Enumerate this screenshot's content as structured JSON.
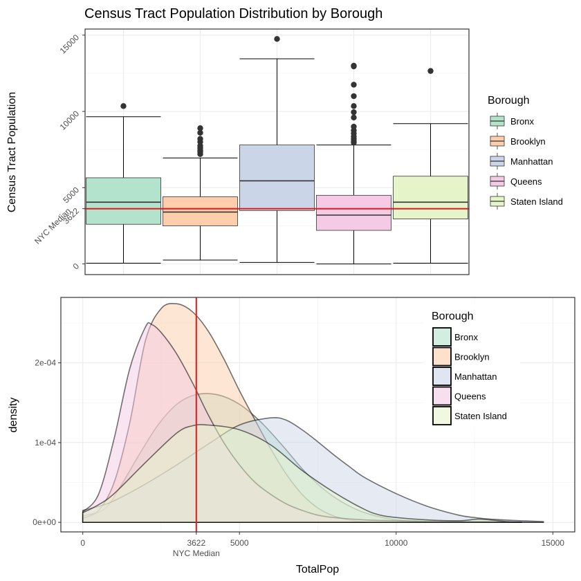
{
  "chart_data": [
    {
      "type": "box",
      "title": "Census Tract Population Distribution by Borough",
      "xlabel": "",
      "ylabel": "Census Tract Population",
      "ylim": [
        -700,
        15400
      ],
      "yticks": [
        0,
        5000,
        10000,
        15000
      ],
      "reference_line": {
        "value": 3622,
        "label": "NYC Median",
        "value_label": "3622",
        "color": "#e41a1c"
      },
      "grid": true,
      "legend": {
        "title": "Borough",
        "position": "right"
      },
      "series": [
        {
          "name": "Bronx",
          "color": "#b3e2cd",
          "min": 50,
          "q1": 2600,
          "median": 4050,
          "q3": 5650,
          "max": 9650,
          "outliers": [
            10350
          ]
        },
        {
          "name": "Brooklyn",
          "color": "#fdcdac",
          "min": 250,
          "q1": 2500,
          "median": 3400,
          "q3": 4400,
          "max": 6950,
          "outliers": [
            7200,
            7350,
            7450,
            7600,
            7750,
            8000,
            8200,
            8600,
            8900
          ]
        },
        {
          "name": "Manhattan",
          "color": "#cbd5e8",
          "min": 100,
          "q1": 3500,
          "median": 5450,
          "q3": 7800,
          "max": 13450,
          "outliers": [
            14750
          ]
        },
        {
          "name": "Queens",
          "color": "#f4cae4",
          "min": 0,
          "q1": 2200,
          "median": 3200,
          "q3": 4500,
          "max": 7800,
          "outliers": [
            7950,
            8050,
            8200,
            8350,
            8550,
            8750,
            9000,
            9600,
            9950,
            10350,
            11000,
            11750,
            12950,
            13000
          ]
        },
        {
          "name": "Staten Island",
          "color": "#e6f5c9",
          "min": 50,
          "q1": 2950,
          "median": 4050,
          "q3": 5750,
          "max": 9200,
          "outliers": [
            12650
          ]
        }
      ]
    },
    {
      "type": "area",
      "title": "",
      "xlabel": "TotalPop",
      "ylabel": "density",
      "xlim": [
        -700,
        15700
      ],
      "ylim": [
        -1.2e-05,
        0.000282
      ],
      "xticks": [
        0,
        3622,
        5000,
        10000,
        15000
      ],
      "xtick_labels": [
        "0",
        "3622",
        "5000",
        "10000",
        "15000"
      ],
      "xtick_sublabel": {
        "value": 3622,
        "text": "NYC Median"
      },
      "yticks": [
        0,
        0.0001,
        0.0002
      ],
      "ytick_labels": [
        "0e+00",
        "1e-04",
        "2e-04"
      ],
      "reference_line": {
        "value": 3622,
        "color": "#e41a1c"
      },
      "grid": true,
      "legend": {
        "title": "Borough",
        "position": "top-right"
      },
      "series": [
        {
          "name": "Bronx",
          "color": "#b3e2cd",
          "x": [
            0,
            700,
            1200,
            1800,
            2400,
            3000,
            3600,
            4300,
            5000,
            5700,
            6400,
            7100,
            7900,
            8800,
            9700,
            10500,
            11500,
            13000,
            14700
          ],
          "y": [
            8e-06,
            1.7e-05,
            4.5e-05,
            8.5e-05,
            0.000122,
            0.000148,
            0.00016,
            0.00016,
            0.000148,
            0.000125,
            9.5e-05,
            6.3e-05,
            3.5e-05,
            1.5e-05,
            5e-06,
            2e-06,
            1e-06,
            1e-06,
            0.0
          ]
        },
        {
          "name": "Brooklyn",
          "color": "#fdcdac",
          "x": [
            0,
            500,
            1000,
            1500,
            2000,
            2500,
            3000,
            3500,
            4000,
            4500,
            5000,
            5500,
            6000,
            6500,
            7000,
            7500,
            8000,
            8500,
            9000
          ],
          "y": [
            5e-06,
            1.5e-05,
            5e-05,
            0.000125,
            0.000228,
            0.000268,
            0.000274,
            0.000264,
            0.00024,
            0.000205,
            0.000165,
            0.000128,
            9.2e-05,
            6e-05,
            3.5e-05,
            1.8e-05,
            8e-06,
            3e-06,
            0.0
          ]
        },
        {
          "name": "Manhattan",
          "color": "#cbd5e8",
          "x": [
            0,
            500,
            1000,
            2000,
            3000,
            4000,
            5000,
            6000,
            6500,
            7000,
            7500,
            8000,
            8500,
            9000,
            10000,
            11000,
            12000,
            12500,
            13000,
            14000,
            14700
          ],
          "y": [
            1.5e-05,
            2e-05,
            2.7e-05,
            4.8e-05,
            7.2e-05,
            9.8e-05,
            0.000122,
            0.000131,
            0.000128,
            0.000116,
            0.000101,
            8.5e-05,
            7e-05,
            5.6e-05,
            3.6e-05,
            2e-05,
            9e-06,
            6e-06,
            4e-06,
            2e-06,
            1e-06
          ]
        },
        {
          "name": "Queens",
          "color": "#f4cae4",
          "x": [
            0,
            500,
            1000,
            1500,
            2000,
            2200,
            2500,
            3000,
            3500,
            4000,
            4500,
            5000,
            5500,
            6000,
            6500,
            7000,
            7500,
            8000,
            9000,
            10000,
            11000,
            12000,
            13000,
            14000
          ],
          "y": [
            1.3e-05,
            3.5e-05,
            0.000105,
            0.000193,
            0.000245,
            0.000248,
            0.000238,
            0.000211,
            0.000175,
            0.000135,
            0.0001,
            7.2e-05,
            5e-05,
            3.5e-05,
            2.3e-05,
            1.5e-05,
            9e-06,
            6e-06,
            3e-06,
            2e-06,
            1e-06,
            1e-06,
            5e-07,
            0.0
          ]
        },
        {
          "name": "Staten Island",
          "color": "#e6f5c9",
          "x": [
            0,
            500,
            1000,
            2000,
            3000,
            3500,
            4000,
            5000,
            6000,
            7000,
            8000,
            9000,
            9500,
            10000,
            11000,
            12000,
            12600,
            13000,
            13500,
            14000
          ],
          "y": [
            1.2e-05,
            2.2e-05,
            3.6e-05,
            7.5e-05,
            0.000112,
            0.000121,
            0.000122,
            0.000116,
            9.7e-05,
            6.5e-05,
            3.8e-05,
            1.6e-05,
            9e-06,
            6e-06,
            3e-06,
            2e-06,
            4e-06,
            3e-06,
            1e-06,
            0.0
          ]
        }
      ]
    }
  ]
}
